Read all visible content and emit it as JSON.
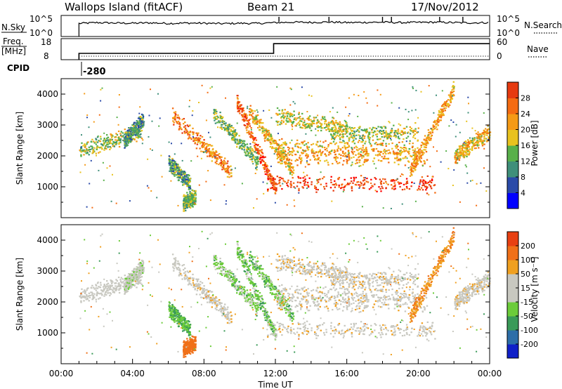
{
  "header": {
    "station": "Wallops Island (fitACF)",
    "beam": "Beam 21",
    "date": "17/Nov/2012"
  },
  "colors": {
    "power_scale": [
      "#0000ff",
      "#2a4aa8",
      "#3f8f7a",
      "#58b04a",
      "#e8c21e",
      "#f59a16",
      "#f46b12",
      "#e63a10",
      "#ff0000"
    ],
    "velocity_scale": [
      "#1020c8",
      "#2d6ea8",
      "#3a9a58",
      "#6ccc3a",
      "#c8c8c0",
      "#c8c8c0",
      "#f0a020",
      "#f07018",
      "#e84012",
      "#ff0000"
    ]
  },
  "chart_data": [
    {
      "type": "line",
      "panel": "N.Sky / N.Search",
      "left_label": "N.Sky",
      "right_label": "N.Search",
      "left_ticks": [
        "10^5",
        "10^0"
      ],
      "right_ticks": [
        "10^5",
        "10^0"
      ],
      "x": [
        1.0,
        2.0,
        3.0,
        4.0,
        5.0,
        6.0,
        7.0,
        8.0,
        9.0,
        10.0,
        11.0,
        12.0,
        13.0,
        14.0,
        15.0,
        16.0,
        17.0,
        18.0,
        19.0,
        20.0,
        21.0,
        22.0,
        23.0,
        24.0
      ],
      "series": [
        {
          "values": [
            0.62,
            0.66,
            0.64,
            0.63,
            0.65,
            0.62,
            0.64,
            0.63,
            0.61,
            0.63,
            0.62,
            0.66,
            0.68,
            0.67,
            0.69,
            0.66,
            0.67,
            0.68,
            0.66,
            0.67,
            0.68,
            0.66,
            0.65,
            0.66
          ]
        }
      ]
    },
    {
      "type": "line",
      "panel": "Freq / Nave",
      "left_label": "Freq.",
      "left_unit": "[MHz]",
      "right_label": "Nave",
      "left_ticks": [
        "18",
        "8"
      ],
      "right_ticks": [
        "60",
        "0"
      ],
      "x": [
        1.0,
        11.9,
        11.9,
        24.0
      ],
      "series": [
        {
          "values": [
            11.0,
            11.0,
            15.6,
            15.6
          ]
        }
      ]
    },
    {
      "type": "text",
      "panel": "CPID",
      "label": "CPID",
      "value": "-280",
      "x": 1.0
    },
    {
      "type": "heatmap",
      "panel": "Power",
      "xlabel": "",
      "ylabel": "Slant Range [km]",
      "colorbar_label": "Power [dB]",
      "colorbar_ticks": [
        "4",
        "8",
        "12",
        "16",
        "20",
        "24",
        "28"
      ],
      "xlim": [
        0,
        24
      ],
      "ylim": [
        0,
        4500
      ],
      "yticks": [
        "1000",
        "2000",
        "3000",
        "4000"
      ],
      "features": [
        {
          "x0": 1.0,
          "x1": 4.5,
          "r0": 2200,
          "r1": 2800,
          "power": 16,
          "velocity": 0
        },
        {
          "x0": 3.5,
          "x1": 4.6,
          "r0": 2500,
          "r1": 3200,
          "power": 12,
          "velocity": 10
        },
        {
          "x0": 6.2,
          "x1": 9.5,
          "r0": 3300,
          "r1": 1500,
          "power": 24,
          "velocity": -5
        },
        {
          "x0": 6.0,
          "x1": 7.2,
          "r0": 1800,
          "r1": 1100,
          "power": 12,
          "velocity": 30
        },
        {
          "x0": 6.8,
          "x1": 7.5,
          "r0": 500,
          "r1": 700,
          "power": 14,
          "velocity": -60
        },
        {
          "x0": 8.5,
          "x1": 11.0,
          "r0": 3400,
          "r1": 1800,
          "power": 14,
          "velocity": 20
        },
        {
          "x0": 9.8,
          "x1": 12.0,
          "r0": 3800,
          "r1": 900,
          "power": 28,
          "velocity": 25
        },
        {
          "x0": 10.5,
          "x1": 13.0,
          "r0": 3500,
          "r1": 1500,
          "power": 20,
          "velocity": 25
        },
        {
          "x0": 11.5,
          "x1": 21.0,
          "r0": 1150,
          "r1": 1100,
          "power": 30,
          "velocity": -5
        },
        {
          "x0": 12.0,
          "x1": 20.0,
          "r0": 2350,
          "r1": 2250,
          "power": 20,
          "velocity": -5
        },
        {
          "x0": 12.0,
          "x1": 20.5,
          "r0": 2000,
          "r1": 1950,
          "power": 22,
          "velocity": -5
        },
        {
          "x0": 12.0,
          "x1": 16.0,
          "r0": 3300,
          "r1": 2900,
          "power": 18,
          "velocity": -5
        },
        {
          "x0": 15.0,
          "x1": 20.0,
          "r0": 2700,
          "r1": 2800,
          "power": 16,
          "velocity": -5
        },
        {
          "x0": 19.5,
          "x1": 22.0,
          "r0": 1500,
          "r1": 4200,
          "power": 22,
          "velocity": -30
        },
        {
          "x0": 22.0,
          "x1": 24.0,
          "r0": 2000,
          "r1": 2800,
          "power": 20,
          "velocity": -5
        }
      ]
    },
    {
      "type": "heatmap",
      "panel": "Velocity",
      "xlabel": "Time UT",
      "ylabel": "Slant Range [km]",
      "colorbar_label": "Velocity [m s⁻¹]",
      "colorbar_ticks": [
        "200",
        "100",
        "50",
        "15",
        "-15",
        "-50",
        "-100",
        "-200"
      ],
      "xlim": [
        0,
        24
      ],
      "ylim": [
        0,
        4500
      ],
      "xticks": [
        "00:00",
        "04:00",
        "08:00",
        "12:00",
        "16:00",
        "20:00",
        "00:00"
      ],
      "yticks": [
        "1000",
        "2000",
        "3000",
        "4000"
      ]
    }
  ]
}
